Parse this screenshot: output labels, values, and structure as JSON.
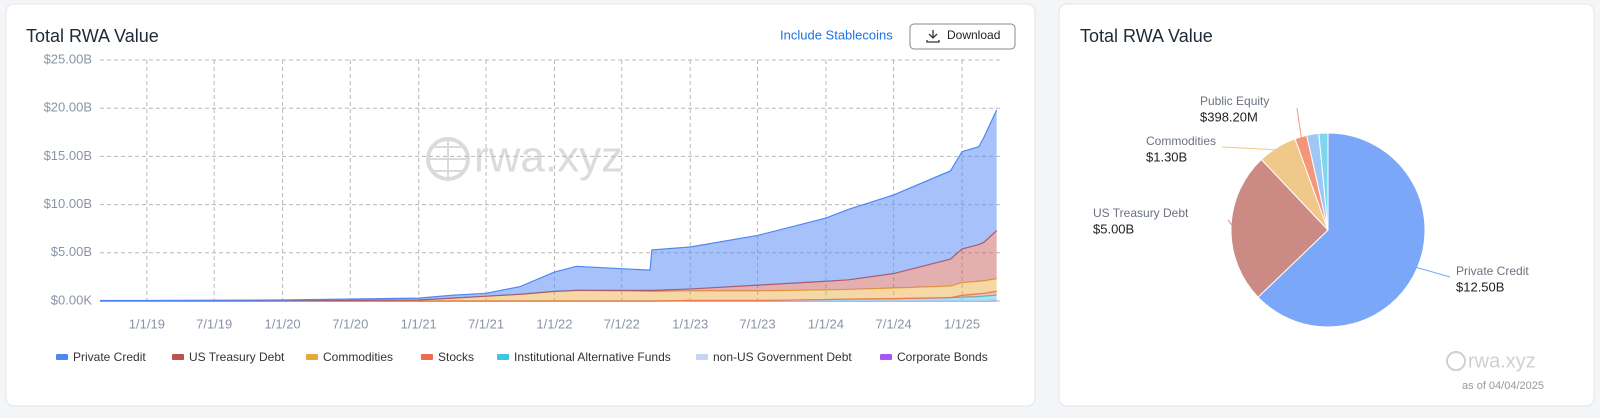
{
  "chart_data": [
    {
      "type": "stacked_area",
      "title": "Total RWA Value",
      "x": [
        "2018-08-28",
        "2019-01-01",
        "2020-01-01",
        "2021-01-01",
        "2021-04-01",
        "2021-07-01",
        "2021-10-01",
        "2022-01-01",
        "2022-03-01",
        "2022-09-15",
        "2022-09-20",
        "2023-01-01",
        "2023-07-01",
        "2024-01-01",
        "2024-03-01",
        "2024-07-01",
        "2024-12-01",
        "2025-01-01",
        "2025-02-15",
        "2025-03-01",
        "2025-04-04"
      ],
      "xlim": [
        "2018-08-28",
        "2025-04-13"
      ],
      "xticks": [
        {
          "value": "2019-01-01",
          "label": "1/1/19"
        },
        {
          "value": "2019-07-01",
          "label": "7/1/19"
        },
        {
          "value": "2020-01-01",
          "label": "1/1/20"
        },
        {
          "value": "2020-07-01",
          "label": "7/1/20"
        },
        {
          "value": "2021-01-01",
          "label": "1/1/21"
        },
        {
          "value": "2021-07-01",
          "label": "7/1/21"
        },
        {
          "value": "2022-01-01",
          "label": "1/1/22"
        },
        {
          "value": "2022-07-01",
          "label": "7/1/22"
        },
        {
          "value": "2023-01-01",
          "label": "1/1/23"
        },
        {
          "value": "2023-07-01",
          "label": "7/1/23"
        },
        {
          "value": "2024-01-01",
          "label": "1/1/24"
        },
        {
          "value": "2024-07-01",
          "label": "7/1/24"
        },
        {
          "value": "2025-01-01",
          "label": "1/1/25"
        }
      ],
      "ylim": [
        0,
        25000000000
      ],
      "yticks": [
        {
          "value": 0,
          "label": "$0.00K"
        },
        {
          "value": 5000000000,
          "label": "$5.00B"
        },
        {
          "value": 10000000000,
          "label": "$10.00B"
        },
        {
          "value": 15000000000,
          "label": "$15.00B"
        },
        {
          "value": 20000000000,
          "label": "$20.00B"
        },
        {
          "value": 25000000000,
          "label": "$25.00B"
        }
      ],
      "grid": true,
      "series": [
        {
          "name": "Private Credit",
          "color": "#4f86f7",
          "values": [
            30000000,
            30000000,
            70000000,
            200000000,
            300000000,
            300000000,
            800000000,
            2000000000,
            2500000000,
            2100000000,
            4200000000,
            4350000000,
            5150000000,
            6550000000,
            7300000000,
            8150000000,
            9150000000,
            10100000000,
            10150000000,
            10900000000,
            12500000000
          ]
        },
        {
          "name": "US Treasury Debt",
          "color": "#c0504d",
          "values": [
            0,
            0,
            0,
            0,
            0,
            0,
            0,
            0,
            0,
            100000000,
            100000000,
            200000000,
            600000000,
            900000000,
            1000000000,
            1500000000,
            2800000000,
            3500000000,
            3800000000,
            4000000000,
            5000000000
          ]
        },
        {
          "name": "Commodities",
          "color": "#e8a838",
          "values": [
            20000000,
            20000000,
            30000000,
            100000000,
            300000000,
            500000000,
            700000000,
            1000000000,
            1100000000,
            1000000000,
            1000000000,
            1000000000,
            1000000000,
            1000000000,
            1000000000,
            1100000000,
            1200000000,
            1300000000,
            1300000000,
            1300000000,
            1300000000
          ]
        },
        {
          "name": "Stocks",
          "color": "#f26b4f",
          "values": [
            0,
            0,
            0,
            0,
            0,
            0,
            0,
            0,
            0,
            0,
            0,
            0,
            0,
            0,
            0,
            0,
            0,
            200000000,
            300000000,
            300000000,
            400000000
          ]
        },
        {
          "name": "Institutional Alternative Funds",
          "color": "#3ec4e6",
          "values": [
            0,
            0,
            0,
            0,
            0,
            0,
            0,
            0,
            0,
            0,
            0,
            0,
            0,
            100000000,
            150000000,
            200000000,
            300000000,
            350000000,
            400000000,
            450000000,
            500000000
          ]
        },
        {
          "name": "non-US Government Debt",
          "color": "#c7d3f5",
          "values": [
            0,
            0,
            0,
            0,
            0,
            0,
            0,
            0,
            0,
            0,
            0,
            50000000,
            50000000,
            50000000,
            50000000,
            50000000,
            50000000,
            50000000,
            50000000,
            50000000,
            100000000
          ]
        },
        {
          "name": "Corporate Bonds",
          "color": "#a855f7",
          "values": [
            0,
            0,
            0,
            0,
            0,
            0,
            0,
            0,
            0,
            0,
            0,
            0,
            0,
            0,
            0,
            0,
            0,
            0,
            0,
            0,
            10000000
          ]
        }
      ]
    },
    {
      "type": "pie",
      "title": "Total RWA Value",
      "categories": [
        "Private Credit",
        "US Treasury Debt",
        "Commodities",
        "Public Equity",
        null,
        null
      ],
      "values": [
        12500000000,
        5000000000,
        1300000000,
        398200000,
        400000000,
        300000000
      ],
      "value_labels": [
        "$12.50B",
        "$5.00B",
        "$1.30B",
        "$398.20M",
        null,
        null
      ],
      "colors": [
        "#7aa7f7",
        "#cc8a84",
        "#f0c98a",
        "#f5957a",
        "#9dc7f5",
        "#7fd6ee"
      ]
    }
  ],
  "controls": {
    "toggle": "Include Stablecoins",
    "download": "Download"
  },
  "watermark": "rwa.xyz",
  "as_of": "as of 04/04/2025"
}
